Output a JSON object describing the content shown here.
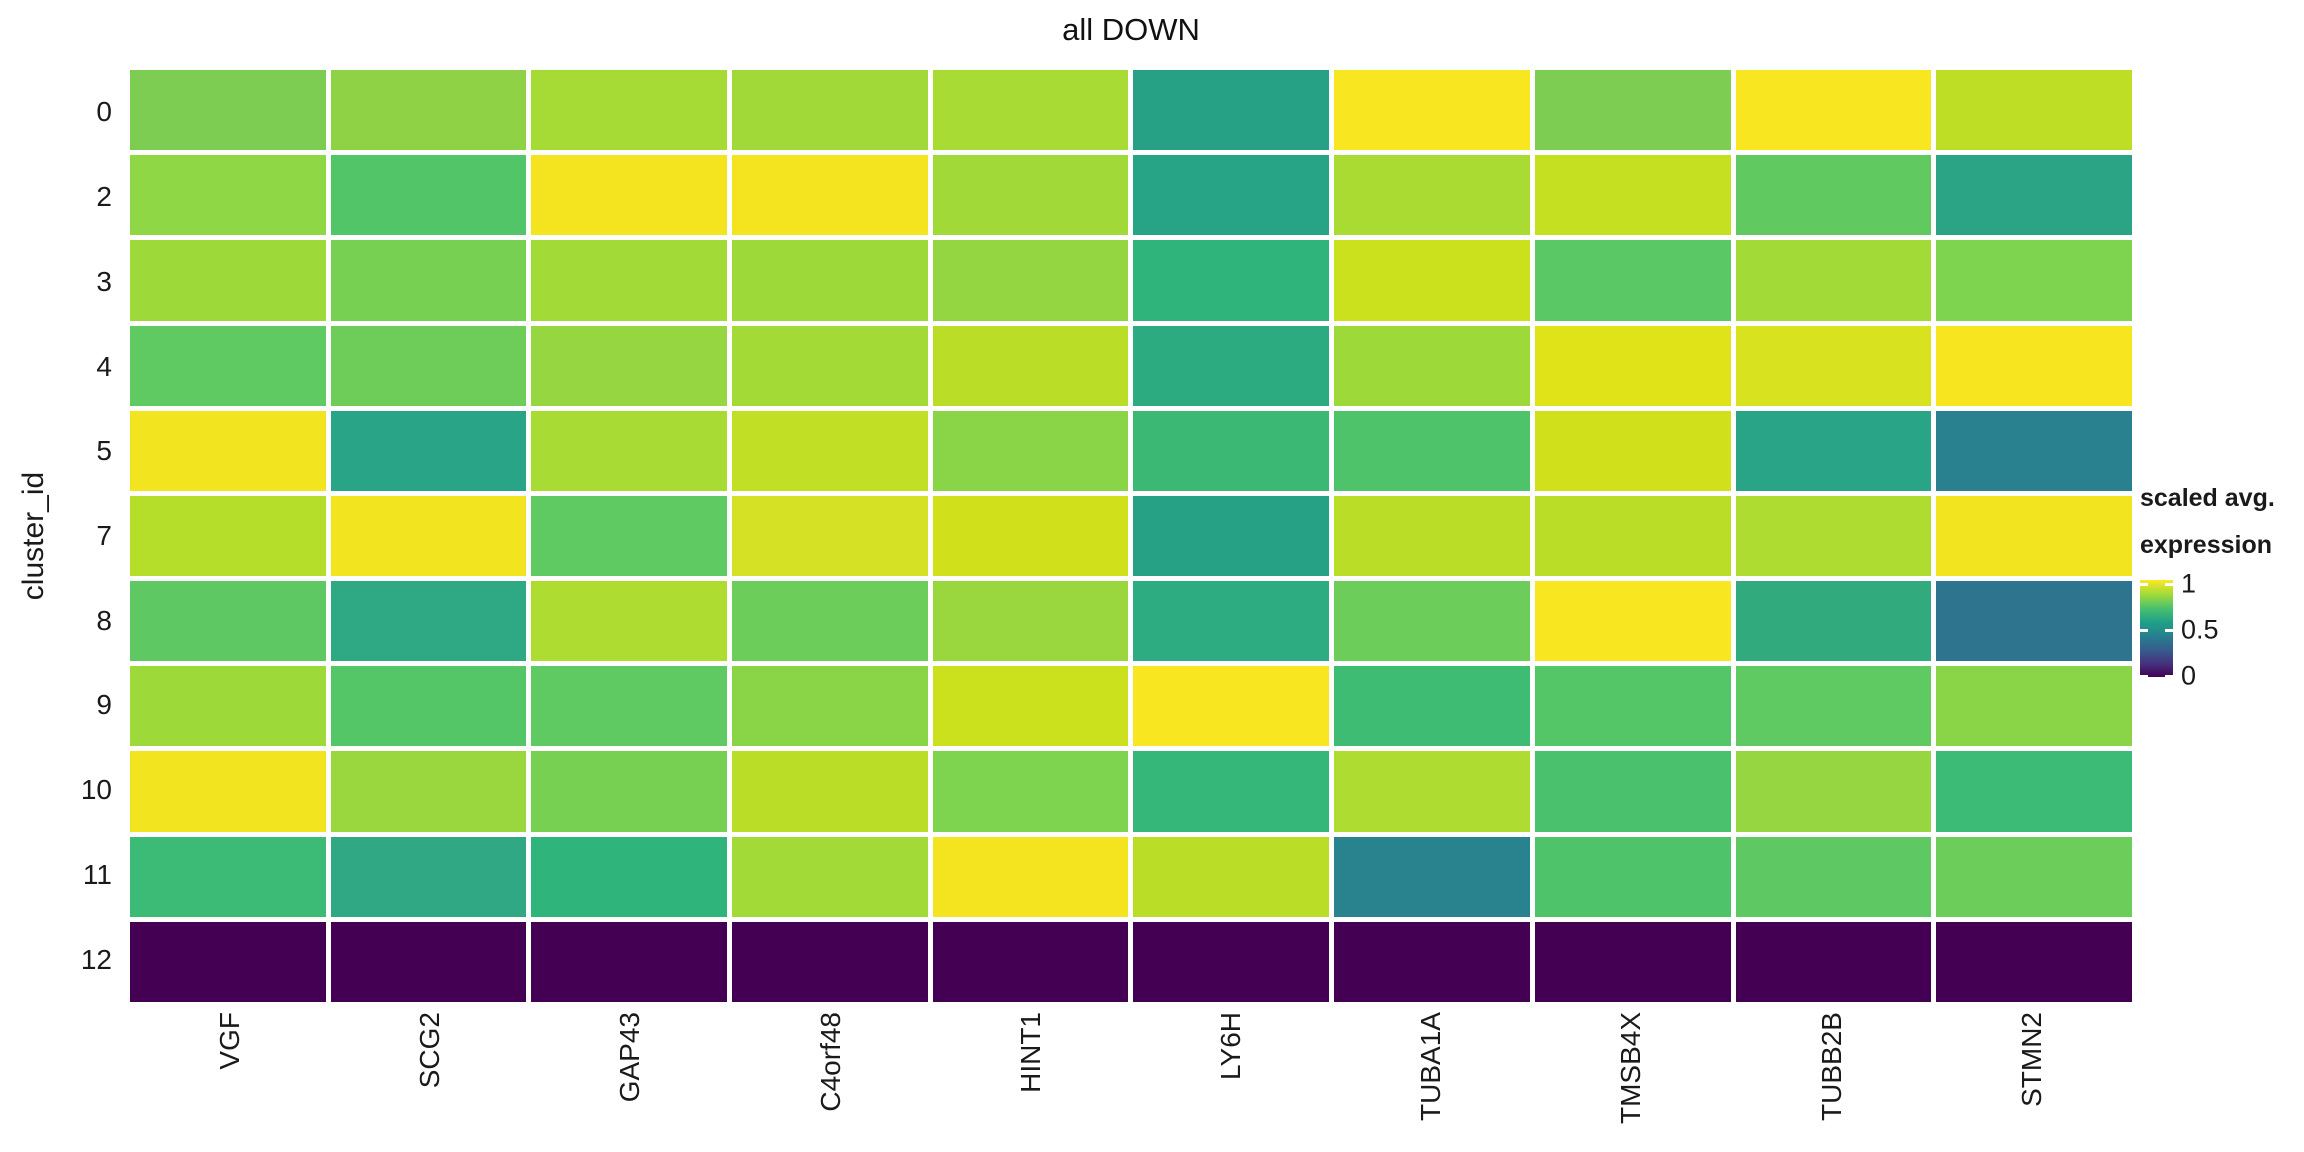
{
  "title": "all DOWN",
  "axes": {
    "y_title": "cluster_id",
    "y_ticks": [
      "0",
      "2",
      "3",
      "4",
      "5",
      "7",
      "8",
      "9",
      "10",
      "11",
      "12"
    ],
    "x_ticks": [
      "VGF",
      "SCG2",
      "GAP43",
      "C4orf48",
      "HINT1",
      "LY6H",
      "TUBA1A",
      "TMSB4X",
      "TUBB2B",
      "STMN2"
    ]
  },
  "legend": {
    "title_line1": "scaled avg.",
    "title_line2": "expression",
    "ticks": [
      {
        "label": "1",
        "pos_pct": 4
      },
      {
        "label": "0.5",
        "pos_pct": 50
      },
      {
        "label": "0",
        "pos_pct": 96
      }
    ],
    "gradient_top_color": "#fde725",
    "gradient_mid_color": "#21918c",
    "gradient_bottom_color": "#440154"
  },
  "chart_data": {
    "type": "heatmap",
    "title": "all DOWN",
    "xlabel": "",
    "ylabel": "cluster_id",
    "x": [
      "VGF",
      "SCG2",
      "GAP43",
      "C4orf48",
      "HINT1",
      "LY6H",
      "TUBA1A",
      "TMSB4X",
      "TUBB2B",
      "STMN2"
    ],
    "y": [
      "0",
      "2",
      "3",
      "4",
      "5",
      "7",
      "8",
      "9",
      "10",
      "11",
      "12"
    ],
    "value_scale": {
      "name": "scaled avg. expression",
      "min": 0,
      "max": 1,
      "colormap": "viridis"
    },
    "values": [
      [
        0.8,
        0.82,
        0.86,
        0.85,
        0.86,
        0.58,
        0.97,
        0.8,
        0.97,
        0.9
      ],
      [
        0.83,
        0.73,
        0.96,
        0.96,
        0.85,
        0.59,
        0.86,
        0.9,
        0.76,
        0.59
      ],
      [
        0.85,
        0.79,
        0.85,
        0.85,
        0.83,
        0.66,
        0.91,
        0.75,
        0.85,
        0.8
      ],
      [
        0.76,
        0.78,
        0.84,
        0.86,
        0.89,
        0.62,
        0.85,
        0.94,
        0.93,
        0.97
      ],
      [
        0.96,
        0.59,
        0.86,
        0.9,
        0.82,
        0.69,
        0.73,
        0.92,
        0.59,
        0.43
      ],
      [
        0.88,
        0.96,
        0.76,
        0.92,
        0.92,
        0.58,
        0.89,
        0.89,
        0.87,
        0.96
      ],
      [
        0.75,
        0.61,
        0.87,
        0.78,
        0.84,
        0.63,
        0.78,
        0.97,
        0.62,
        0.39
      ],
      [
        0.85,
        0.74,
        0.76,
        0.82,
        0.91,
        0.97,
        0.7,
        0.74,
        0.76,
        0.82
      ],
      [
        0.96,
        0.84,
        0.79,
        0.89,
        0.8,
        0.67,
        0.87,
        0.72,
        0.84,
        0.69
      ],
      [
        0.69,
        0.61,
        0.66,
        0.85,
        0.96,
        0.89,
        0.44,
        0.73,
        0.75,
        0.78
      ],
      [
        0.0,
        0.0,
        0.0,
        0.0,
        0.0,
        0.0,
        0.0,
        0.0,
        0.0,
        0.0
      ]
    ],
    "colors": [
      [
        "#7ccd52",
        "#8fd246",
        "#a6da35",
        "#a0d938",
        "#a8db33",
        "#26a185",
        "#f8e621",
        "#7ccd52",
        "#f8e621",
        "#bede26"
      ],
      [
        "#8fd744",
        "#52c569",
        "#f4e41f",
        "#f4e41f",
        "#a0d938",
        "#27a486",
        "#aadb32",
        "#c5e021",
        "#60ca60",
        "#2aa485"
      ],
      [
        "#9ed93a",
        "#77d052",
        "#a2da37",
        "#9ed93a",
        "#93d641",
        "#2fb47c",
        "#cce11e",
        "#5ac864",
        "#a2da37",
        "#7ed34f"
      ],
      [
        "#5fca61",
        "#6ecd58",
        "#96d741",
        "#a4da35",
        "#bade28",
        "#2dab80",
        "#9ed93a",
        "#e0e318",
        "#d8e21f",
        "#f6e51f"
      ],
      [
        "#f2e41f",
        "#2aa486",
        "#a8db33",
        "#c0df25",
        "#8ad547",
        "#3cb875",
        "#4ec36a",
        "#d0e11c",
        "#2aa486",
        "#29808e"
      ],
      [
        "#b5de2b",
        "#f2e41f",
        "#5fca61",
        "#d4e125",
        "#d0e11c",
        "#26a185",
        "#bade28",
        "#bade28",
        "#aedc30",
        "#f2e41f"
      ],
      [
        "#5ec962",
        "#2fa884",
        "#aedc30",
        "#6ccd5a",
        "#9ad73e",
        "#2eac81",
        "#6ccd5a",
        "#f8e621",
        "#31ab7e",
        "#2e748e"
      ],
      [
        "#9ed93a",
        "#55c667",
        "#5fca61",
        "#8ad547",
        "#cce11e",
        "#f8e621",
        "#3fbc73",
        "#55c667",
        "#5fca61",
        "#8ad547"
      ],
      [
        "#f2e41f",
        "#9ad73e",
        "#77d052",
        "#bade28",
        "#7ed34f",
        "#35b779",
        "#aedc30",
        "#4ac16d",
        "#96d741",
        "#3bbb75"
      ],
      [
        "#3bbb75",
        "#31a884",
        "#2fb47c",
        "#a2da37",
        "#f4e41f",
        "#bade28",
        "#28838e",
        "#4ec36a",
        "#5ec962",
        "#6ccd5a"
      ],
      [
        "#440154",
        "#440154",
        "#440154",
        "#440154",
        "#440154",
        "#440154",
        "#440154",
        "#440154",
        "#440154",
        "#440154"
      ]
    ]
  }
}
